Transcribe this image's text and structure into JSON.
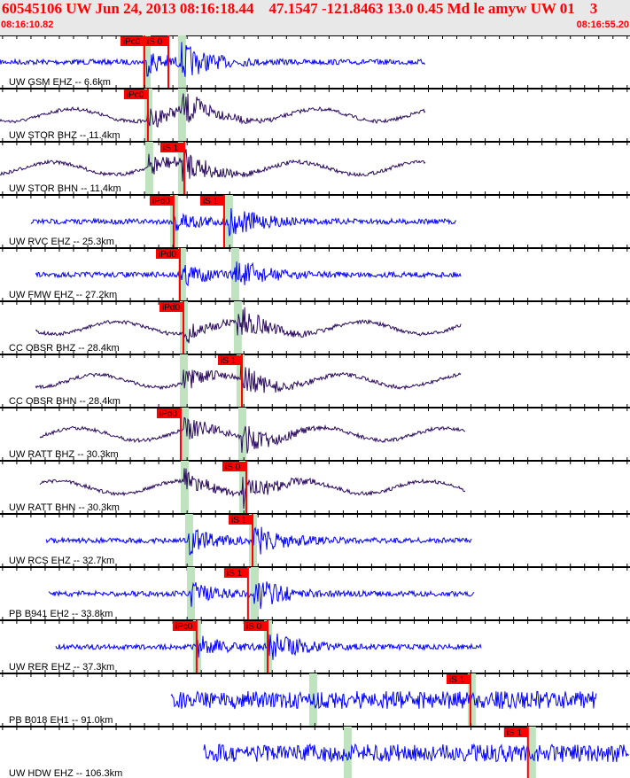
{
  "header": {
    "title": "60545106 UW Jun 24, 2013 08:16:18.44    47.1547 -121.8463 13.0 0.45 Md le amyw UW 01    3",
    "start_time": "08:16:10.82",
    "end_time": "08:16:55.20"
  },
  "chart_data": {
    "type": "waveform",
    "xlim": [
      "08:16:10.82",
      "08:16:55.20"
    ],
    "trace_duration_s": 30,
    "colors": {
      "short_period": "#0000ff",
      "broadband": "#2a0a5e",
      "pick": "#ff0000",
      "theoretical": "#bfe3bf"
    },
    "traces": [
      {
        "label": "UW GSM EHZ -- 6.6km",
        "color": "#0000ff",
        "start": "08:16:10.82",
        "theo_p": "08:16:21.12",
        "theo_s": "08:16:23.61",
        "picks": [
          {
            "label": "iPc0",
            "time": "08:16:20.99"
          },
          {
            "label": "iS 0",
            "time": "08:16:22.68"
          }
        ]
      },
      {
        "label": "UW STOR BHZ -- 11.4km",
        "color": "#2a0a5e",
        "start": "08:16:10.82",
        "theo_p": "08:16:21.24",
        "theo_s": "08:16:23.61",
        "picks": [
          {
            "label": "iPc0",
            "time": "08:16:21.24"
          }
        ]
      },
      {
        "label": "UW STOR BHN -- 11.4km",
        "color": "#2a0a5e",
        "start": "08:16:10.82",
        "theo_p": "08:16:21.30",
        "theo_s": "08:16:23.61",
        "picks": [
          {
            "label": "iS 1",
            "time": "08:16:23.80"
          }
        ]
      },
      {
        "label": "UW RVC EHZ -- 25.3km",
        "color": "#0000ff",
        "start": "08:16:13.00",
        "theo_p": "08:16:23.05",
        "theo_s": "08:16:26.92",
        "picks": [
          {
            "label": "iPd0",
            "time": "08:16:23.05"
          },
          {
            "label": "iS 1",
            "time": "08:16:26.61"
          }
        ]
      },
      {
        "label": "UW FMW EHZ -- 27.2km",
        "color": "#0000ff",
        "start": "08:16:13.32",
        "theo_p": "08:16:23.61",
        "theo_s": "08:16:27.36",
        "picks": [
          {
            "label": "iPd0",
            "time": "08:16:23.49"
          }
        ]
      },
      {
        "label": "CC OBSR BHZ -- 28.4km",
        "color": "#2a0a5e",
        "start": "08:16:13.32",
        "theo_p": "08:16:23.74",
        "theo_s": "08:16:27.54",
        "picks": [
          {
            "label": "iPd0",
            "time": "08:16:23.74"
          }
        ]
      },
      {
        "label": "CC OBSR BHN -- 28.4km",
        "color": "#2a0a5e",
        "start": "08:16:13.32",
        "theo_p": "08:16:23.74",
        "theo_s": "08:16:27.73",
        "picks": [
          {
            "label": "iS 1",
            "time": "08:16:27.86"
          }
        ]
      },
      {
        "label": "UW RATT BHZ -- 30.3km",
        "color": "#2a0a5e",
        "start": "08:16:13.63",
        "theo_p": "08:16:23.80",
        "theo_s": "08:16:27.86",
        "picks": [
          {
            "label": "iPd0",
            "time": "08:16:23.55"
          }
        ]
      },
      {
        "label": "UW RATT BHN -- 30.3km",
        "color": "#2a0a5e",
        "start": "08:16:13.63",
        "theo_p": "08:16:23.80",
        "theo_s": "08:16:27.92",
        "picks": [
          {
            "label": "iS 0",
            "time": "08:16:28.17"
          }
        ]
      },
      {
        "label": "UW RCS EHZ -- 32.7km",
        "color": "#0000ff",
        "start": "08:16:14.07",
        "theo_p": "08:16:24.11",
        "theo_s": "08:16:28.61",
        "picks": [
          {
            "label": "iS 1",
            "time": "08:16:28.61"
          }
        ]
      },
      {
        "label": "PB B941 EH2 -- 33.8km",
        "color": "#0000ff",
        "start": "08:16:14.25",
        "theo_p": "08:16:24.24",
        "theo_s": "08:16:28.73",
        "picks": [
          {
            "label": "iS 1",
            "time": "08:16:28.29"
          }
        ]
      },
      {
        "label": "UW RER EHZ -- 37.3km",
        "color": "#0000ff",
        "start": "08:16:14.75",
        "theo_p": "08:16:24.67",
        "theo_s": "08:16:29.67",
        "picks": [
          {
            "label": "iPc0",
            "time": "08:16:24.67"
          },
          {
            "label": "iS 0",
            "time": "08:16:29.67"
          }
        ]
      },
      {
        "label": "PB B018 EH1 -- 91.0km",
        "color": "#0000ff",
        "start": "08:16:22.86",
        "theo_p": "08:16:32.85",
        "theo_s": "08:16:44.02",
        "picks": [
          {
            "label": "iS 1",
            "time": "08:16:43.96"
          }
        ]
      },
      {
        "label": "UW HDW EHZ -- 106.3km",
        "color": "#0000ff",
        "start": "08:16:25.17",
        "theo_p": "08:16:35.28",
        "theo_s": "08:16:48.26",
        "picks": [
          {
            "label": "iS 1",
            "time": "08:16:48.01"
          }
        ]
      }
    ]
  }
}
